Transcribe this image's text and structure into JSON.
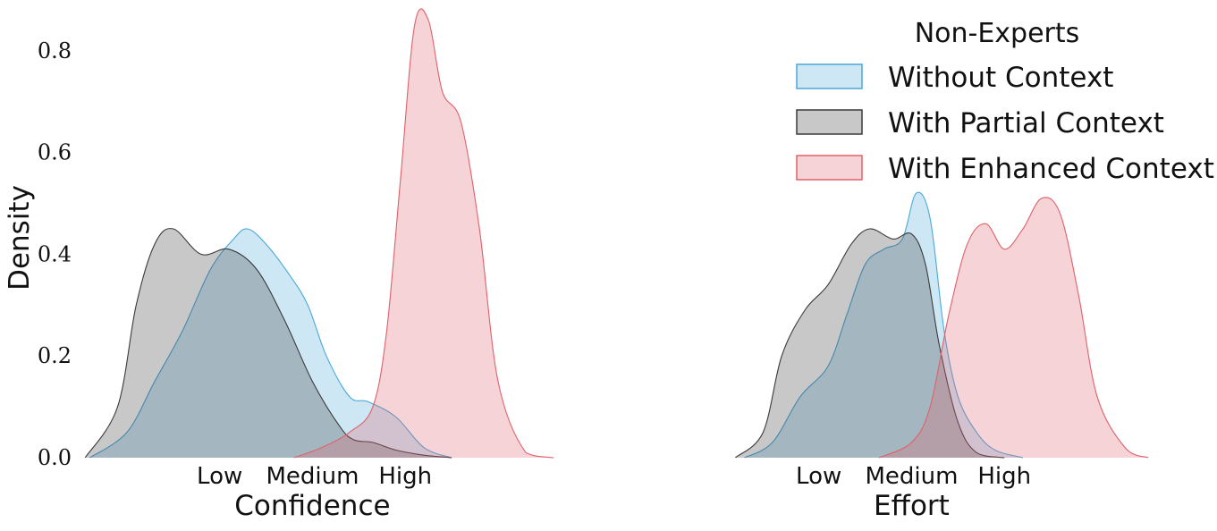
{
  "chart_data": [
    {
      "type": "area",
      "subtype": "kde-density",
      "xlabel": "Confidence",
      "ylabel": "Density",
      "categories": [
        "Low",
        "Medium",
        "High"
      ],
      "x_ticks": [
        1,
        2,
        3
      ],
      "xlim": [
        -0.5,
        4.8
      ],
      "ylim": [
        0,
        0.9
      ],
      "y_ticks": [
        0.0,
        0.2,
        0.4,
        0.6,
        0.8
      ],
      "y_tick_labels": [
        "0.0",
        "0.2",
        "0.4",
        "0.6",
        "0.8"
      ],
      "grid": false,
      "series": [
        {
          "name": "Without Context",
          "color": "#4aa8d8",
          "x": [
            -0.4,
            0.0,
            0.3,
            0.6,
            0.9,
            1.15,
            1.3,
            1.5,
            1.75,
            1.95,
            2.15,
            2.4,
            2.6,
            2.9,
            3.2,
            3.5
          ],
          "y": [
            0.0,
            0.05,
            0.15,
            0.25,
            0.37,
            0.43,
            0.45,
            0.42,
            0.36,
            0.3,
            0.2,
            0.12,
            0.11,
            0.08,
            0.02,
            0.0
          ]
        },
        {
          "name": "With Partial Context",
          "color": "#3a3a3a",
          "x": [
            -0.45,
            -0.1,
            0.1,
            0.3,
            0.5,
            0.8,
            1.1,
            1.4,
            1.7,
            2.0,
            2.3,
            2.45,
            2.65,
            2.9,
            3.2,
            3.5
          ],
          "y": [
            0.0,
            0.1,
            0.3,
            0.42,
            0.45,
            0.4,
            0.41,
            0.37,
            0.27,
            0.15,
            0.06,
            0.035,
            0.03,
            0.015,
            0.005,
            0.0
          ]
        },
        {
          "name": "With Enhanced Context",
          "color": "#e0606a",
          "x": [
            1.8,
            2.1,
            2.4,
            2.65,
            2.8,
            2.95,
            3.1,
            3.25,
            3.4,
            3.6,
            3.8,
            4.0,
            4.3,
            4.6
          ],
          "y": [
            0.0,
            0.02,
            0.05,
            0.1,
            0.25,
            0.55,
            0.85,
            0.86,
            0.72,
            0.66,
            0.45,
            0.15,
            0.01,
            0.0
          ]
        }
      ]
    },
    {
      "type": "area",
      "subtype": "kde-density",
      "xlabel": "Effort",
      "ylabel": "",
      "categories": [
        "Low",
        "Medium",
        "High"
      ],
      "x_ticks": [
        1,
        2,
        3
      ],
      "xlim": [
        -0.5,
        4.8
      ],
      "ylim": [
        0,
        0.9
      ],
      "grid": false,
      "series": [
        {
          "name": "Without Context",
          "color": "#4aa8d8",
          "x": [
            0.2,
            0.5,
            0.8,
            1.1,
            1.3,
            1.5,
            1.7,
            1.9,
            2.05,
            2.2,
            2.35,
            2.5,
            2.7,
            2.9,
            3.2
          ],
          "y": [
            0.0,
            0.03,
            0.12,
            0.18,
            0.28,
            0.38,
            0.41,
            0.43,
            0.52,
            0.47,
            0.25,
            0.12,
            0.05,
            0.015,
            0.0
          ]
        },
        {
          "name": "With Partial Context",
          "color": "#3a3a3a",
          "x": [
            0.1,
            0.4,
            0.6,
            0.85,
            1.1,
            1.35,
            1.55,
            1.8,
            2.0,
            2.15,
            2.3,
            2.5,
            2.7,
            3.0
          ],
          "y": [
            0.0,
            0.05,
            0.2,
            0.29,
            0.34,
            0.42,
            0.45,
            0.43,
            0.44,
            0.38,
            0.22,
            0.07,
            0.01,
            0.0
          ]
        },
        {
          "name": "With Enhanced Context",
          "color": "#e0606a",
          "x": [
            1.65,
            2.0,
            2.2,
            2.4,
            2.6,
            2.8,
            3.0,
            3.2,
            3.4,
            3.6,
            3.8,
            4.0,
            4.3,
            4.55
          ],
          "y": [
            0.0,
            0.03,
            0.1,
            0.28,
            0.42,
            0.46,
            0.41,
            0.45,
            0.51,
            0.48,
            0.32,
            0.12,
            0.02,
            0.0
          ]
        }
      ]
    }
  ],
  "legend": {
    "title": "Non-Experts",
    "placement": "top-right",
    "entries": [
      {
        "label": "Without Context",
        "color": "#4aa8d8"
      },
      {
        "label": "With Partial Context",
        "color": "#3a3a3a"
      },
      {
        "label": "With Enhanced Context",
        "color": "#e0606a"
      }
    ]
  }
}
